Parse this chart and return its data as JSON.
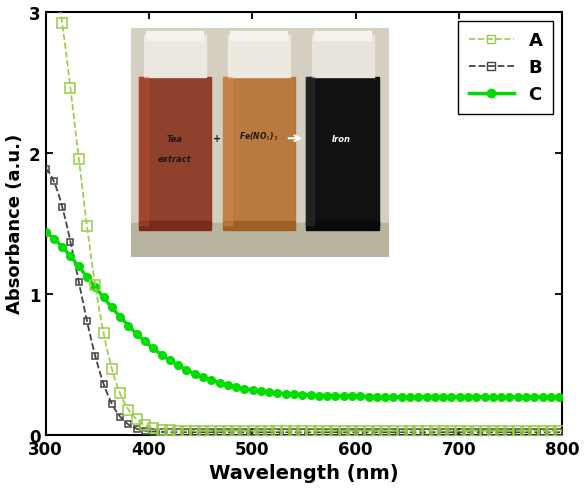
{
  "title": "",
  "xlabel": "Wavelength (nm)",
  "ylabel": "Absorbance (a.u.)",
  "xlim": [
    300,
    800
  ],
  "ylim": [
    0,
    3
  ],
  "xticks": [
    300,
    400,
    500,
    600,
    700,
    800
  ],
  "yticks": [
    0,
    1,
    2,
    3
  ],
  "background_color": "#ffffff",
  "curve_A_color": "#99cc44",
  "curve_B_color": "#444444",
  "curve_C_color": "#00dd00",
  "legend_labels": [
    "A",
    "B",
    "C"
  ]
}
